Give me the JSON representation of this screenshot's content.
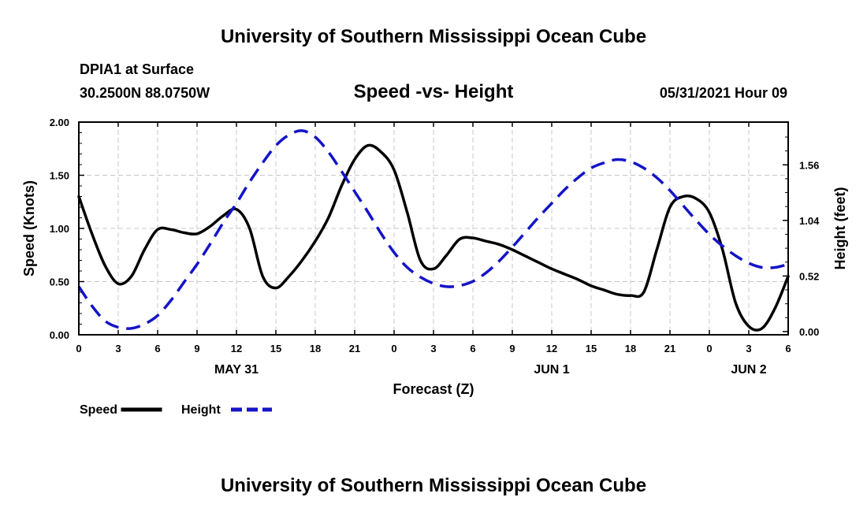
{
  "header": {
    "title_top": "University of Southern Mississippi Ocean Cube",
    "station": "DPIA1 at Surface",
    "coords": "30.2500N  88.0750W",
    "chart_title": "Speed -vs- Height",
    "date_label": "05/31/2021 Hour 09",
    "title_bottom": "University of Southern Mississippi Ocean Cube"
  },
  "chart_data": {
    "type": "line",
    "xlabel": "Forecast (Z)",
    "ylabel_left": "Speed (Knots)",
    "ylabel_right": "Height (feet)",
    "x_range": [
      0,
      54
    ],
    "ylim_left": [
      0,
      2
    ],
    "ylim_right": [
      -0.03,
      1.96
    ],
    "x_ticks": [
      0,
      3,
      6,
      9,
      12,
      15,
      18,
      21,
      24,
      27,
      30,
      33,
      36,
      39,
      42,
      45,
      48,
      51,
      54
    ],
    "x_tick_labels": [
      "0",
      "3",
      "6",
      "9",
      "12",
      "15",
      "18",
      "21",
      "0",
      "3",
      "6",
      "9",
      "12",
      "15",
      "18",
      "21",
      "0",
      "3",
      "6"
    ],
    "left_ticks": [
      0,
      0.5,
      1,
      1.5,
      2
    ],
    "left_tick_labels": [
      "0.00",
      "0.50",
      "1.00",
      "1.50",
      "2.00"
    ],
    "right_ticks": [
      0,
      0.52,
      1.04,
      1.56
    ],
    "right_tick_labels": [
      "0.00",
      "0.52",
      "1.04",
      "1.56"
    ],
    "day_labels": [
      {
        "x": 12,
        "label": "MAY 31"
      },
      {
        "x": 36,
        "label": "JUN 1"
      },
      {
        "x": 51,
        "label": "JUN 2"
      }
    ],
    "grid": true,
    "series": [
      {
        "name": "Speed",
        "axis": "left",
        "color": "#000000",
        "style": "solid",
        "points": [
          [
            0,
            1.3
          ],
          [
            1,
            0.95
          ],
          [
            2,
            0.65
          ],
          [
            3,
            0.48
          ],
          [
            4,
            0.55
          ],
          [
            5,
            0.8
          ],
          [
            6,
            0.99
          ],
          [
            7,
            0.99
          ],
          [
            8,
            0.96
          ],
          [
            9,
            0.95
          ],
          [
            10,
            1.02
          ],
          [
            11,
            1.12
          ],
          [
            12,
            1.18
          ],
          [
            13,
            1.0
          ],
          [
            14,
            0.55
          ],
          [
            15,
            0.44
          ],
          [
            16,
            0.55
          ],
          [
            17,
            0.7
          ],
          [
            18,
            0.88
          ],
          [
            19,
            1.1
          ],
          [
            20,
            1.4
          ],
          [
            21,
            1.65
          ],
          [
            22,
            1.78
          ],
          [
            23,
            1.72
          ],
          [
            24,
            1.55
          ],
          [
            25,
            1.15
          ],
          [
            26,
            0.7
          ],
          [
            27,
            0.62
          ],
          [
            28,
            0.75
          ],
          [
            29,
            0.9
          ],
          [
            30,
            0.91
          ],
          [
            31,
            0.88
          ],
          [
            32,
            0.85
          ],
          [
            33,
            0.8
          ],
          [
            34,
            0.74
          ],
          [
            35,
            0.68
          ],
          [
            36,
            0.62
          ],
          [
            37,
            0.57
          ],
          [
            38,
            0.52
          ],
          [
            39,
            0.46
          ],
          [
            40,
            0.42
          ],
          [
            41,
            0.38
          ],
          [
            42,
            0.37
          ],
          [
            43,
            0.4
          ],
          [
            44,
            0.8
          ],
          [
            45,
            1.2
          ],
          [
            46,
            1.3
          ],
          [
            47,
            1.28
          ],
          [
            48,
            1.15
          ],
          [
            49,
            0.8
          ],
          [
            50,
            0.3
          ],
          [
            51,
            0.08
          ],
          [
            52,
            0.06
          ],
          [
            53,
            0.25
          ],
          [
            54,
            0.55
          ]
        ]
      },
      {
        "name": "Height",
        "axis": "right",
        "color": "#1414c8",
        "style": "dashed",
        "points": [
          [
            0,
            0.42
          ],
          [
            1,
            0.24
          ],
          [
            2,
            0.1
          ],
          [
            3,
            0.04
          ],
          [
            4,
            0.03
          ],
          [
            5,
            0.07
          ],
          [
            6,
            0.15
          ],
          [
            7,
            0.29
          ],
          [
            8,
            0.46
          ],
          [
            9,
            0.63
          ],
          [
            10,
            0.82
          ],
          [
            11,
            1.02
          ],
          [
            12,
            1.2
          ],
          [
            13,
            1.4
          ],
          [
            14,
            1.58
          ],
          [
            15,
            1.74
          ],
          [
            16,
            1.84
          ],
          [
            17,
            1.88
          ],
          [
            18,
            1.82
          ],
          [
            19,
            1.68
          ],
          [
            20,
            1.5
          ],
          [
            21,
            1.31
          ],
          [
            22,
            1.12
          ],
          [
            23,
            0.92
          ],
          [
            24,
            0.74
          ],
          [
            25,
            0.6
          ],
          [
            26,
            0.51
          ],
          [
            27,
            0.45
          ],
          [
            28,
            0.42
          ],
          [
            29,
            0.43
          ],
          [
            30,
            0.47
          ],
          [
            31,
            0.55
          ],
          [
            32,
            0.66
          ],
          [
            33,
            0.79
          ],
          [
            34,
            0.93
          ],
          [
            35,
            1.07
          ],
          [
            36,
            1.2
          ],
          [
            37,
            1.33
          ],
          [
            38,
            1.44
          ],
          [
            39,
            1.53
          ],
          [
            40,
            1.58
          ],
          [
            41,
            1.61
          ],
          [
            42,
            1.59
          ],
          [
            43,
            1.53
          ],
          [
            44,
            1.44
          ],
          [
            45,
            1.32
          ],
          [
            46,
            1.18
          ],
          [
            47,
            1.04
          ],
          [
            48,
            0.91
          ],
          [
            49,
            0.8
          ],
          [
            50,
            0.71
          ],
          [
            51,
            0.64
          ],
          [
            52,
            0.6
          ],
          [
            53,
            0.6
          ],
          [
            54,
            0.63
          ]
        ]
      }
    ],
    "legend": {
      "placement": "bottom-left",
      "items": [
        {
          "label": "Speed",
          "color": "#000000",
          "style": "solid"
        },
        {
          "label": "Height",
          "color": "#1414c8",
          "style": "dashed"
        }
      ]
    }
  }
}
